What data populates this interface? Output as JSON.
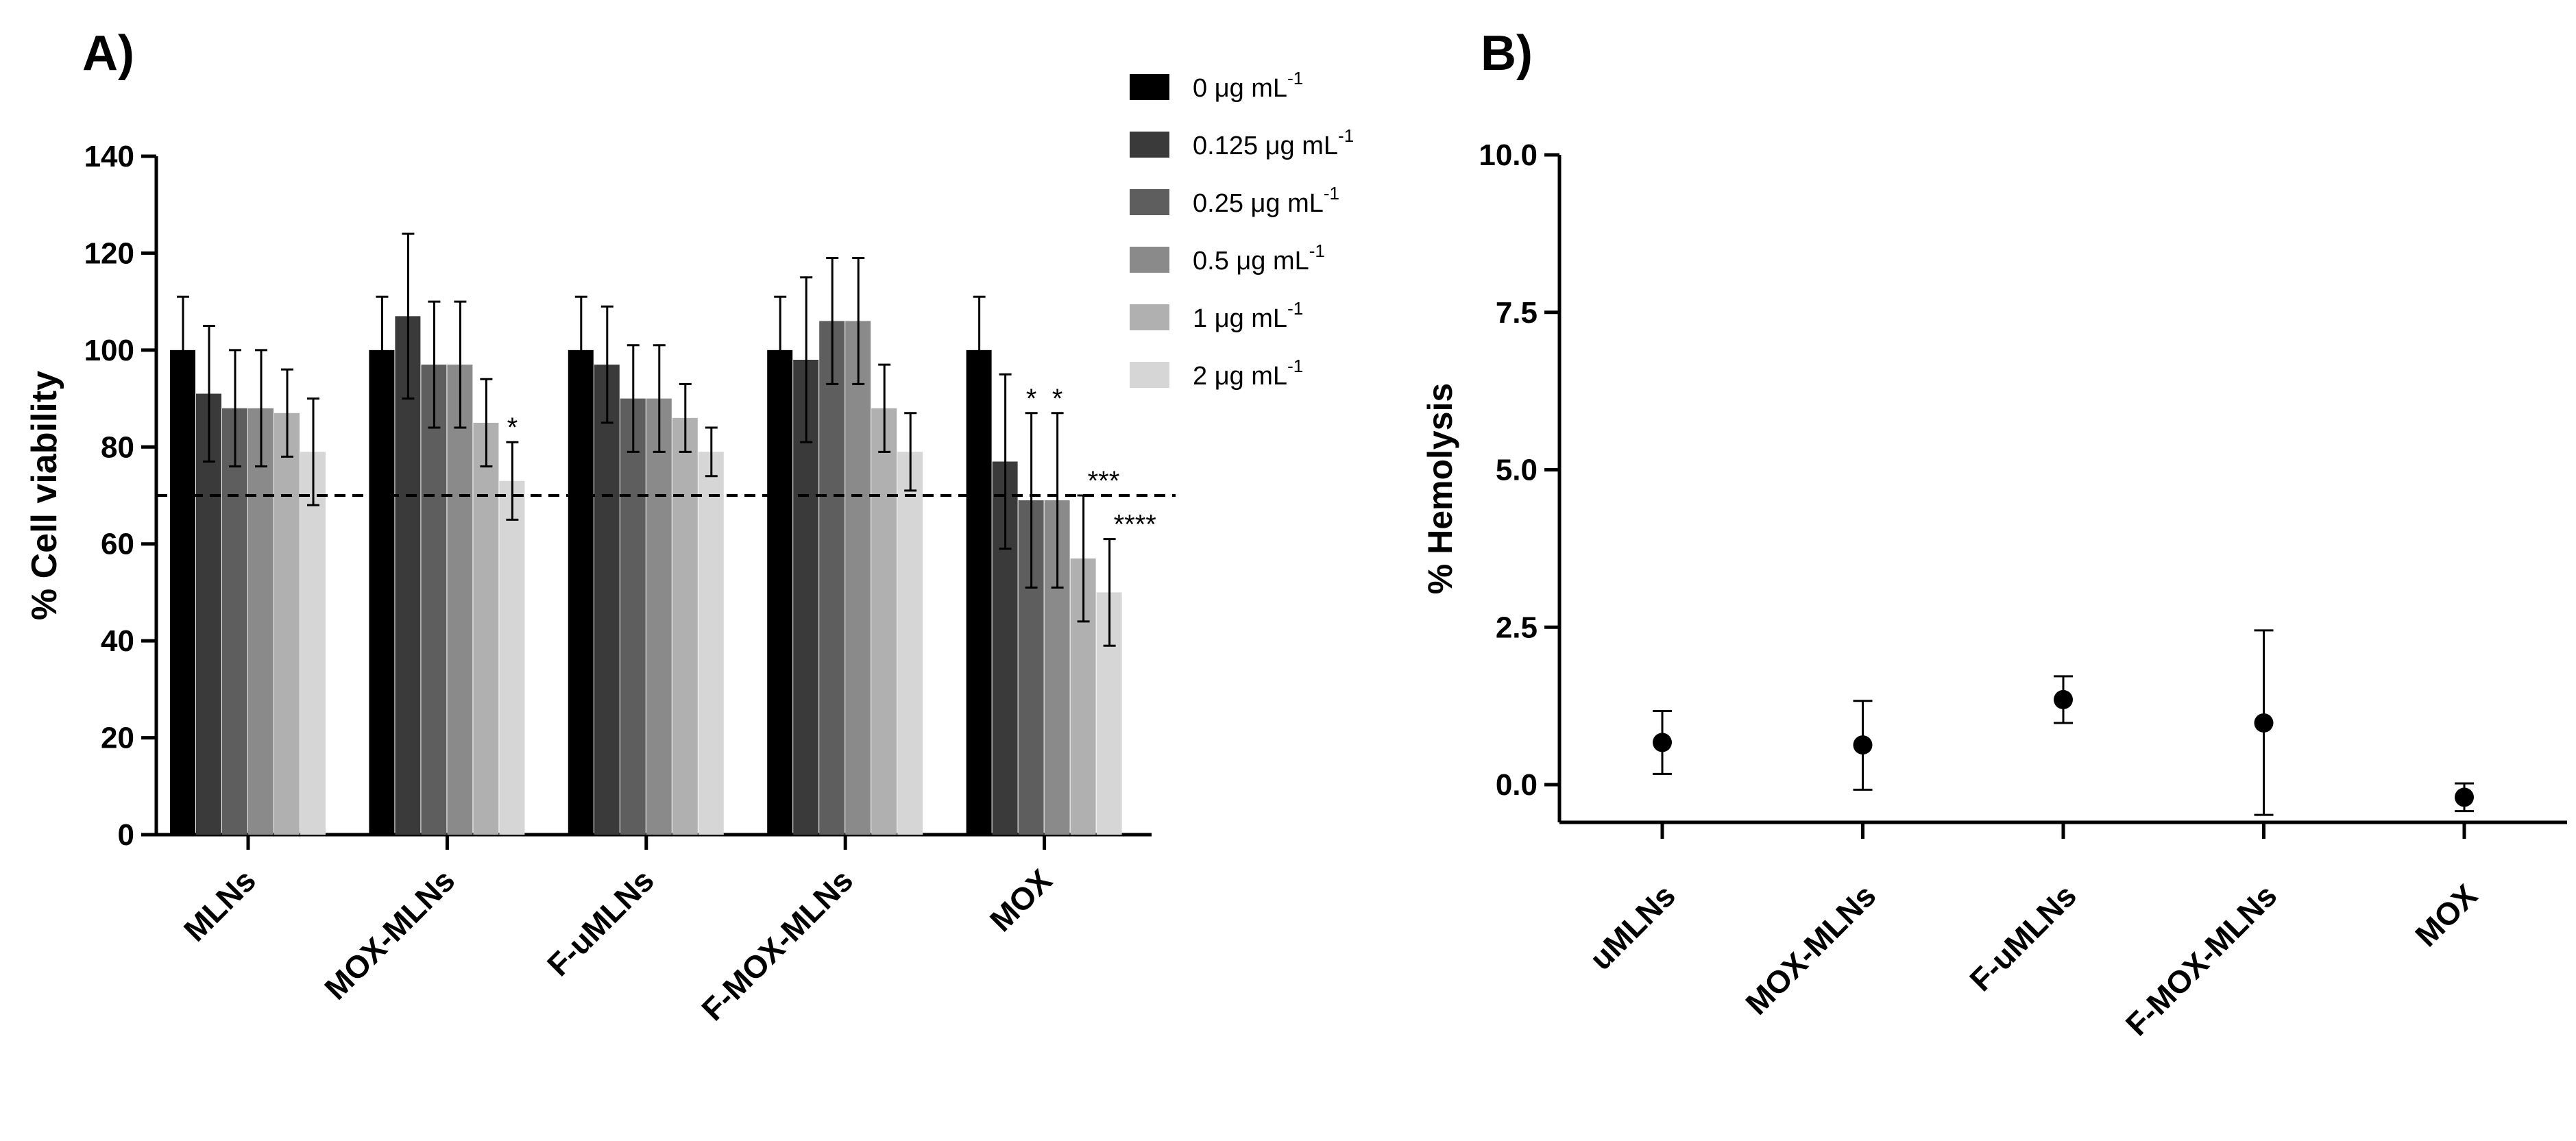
{
  "panels": {
    "a_label": "A)",
    "b_label": "B)"
  },
  "colors": {
    "series": [
      "#000000",
      "#3a3a3a",
      "#5e5e5e",
      "#8a8a8a",
      "#b0b0b0",
      "#d6d6d6"
    ],
    "axis": "#000000",
    "reference_line": "#000000",
    "marker": "#000000"
  },
  "chart_data": [
    {
      "type": "bar",
      "panel": "A)",
      "title": "",
      "xlabel": "",
      "ylabel": "% Cell viability",
      "ylim": [
        0,
        140
      ],
      "yticks": [
        "0",
        "20",
        "40",
        "60",
        "80",
        "100",
        "120",
        "140"
      ],
      "categories": [
        "MLNs",
        "MOX-MLNs",
        "F-uMLNs",
        "F-MOX-MLNs",
        "MOX"
      ],
      "reference_line": 70,
      "legend_position": "top-right",
      "series": [
        {
          "name": "0 μg mL",
          "unit_exponent": "-1",
          "values": [
            100,
            100,
            100,
            100,
            100
          ],
          "errors": [
            11,
            11,
            11,
            11,
            11
          ],
          "annotations": [
            "",
            "",
            "",
            "",
            ""
          ]
        },
        {
          "name": "0.125 μg mL",
          "unit_exponent": "-1",
          "values": [
            91,
            107,
            97,
            98,
            77
          ],
          "errors": [
            14,
            17,
            12,
            17,
            18
          ],
          "annotations": [
            "",
            "",
            "",
            "",
            ""
          ]
        },
        {
          "name": "0.25 μg mL",
          "unit_exponent": "-1",
          "values": [
            88,
            97,
            90,
            106,
            69
          ],
          "errors": [
            12,
            13,
            11,
            13,
            18
          ],
          "annotations": [
            "",
            "",
            "",
            "",
            "*"
          ]
        },
        {
          "name": "0.5 μg mL",
          "unit_exponent": "-1",
          "values": [
            88,
            97,
            90,
            106,
            69
          ],
          "errors": [
            12,
            13,
            11,
            13,
            18
          ],
          "annotations": [
            "",
            "",
            "",
            "",
            "*"
          ]
        },
        {
          "name": "1 μg mL",
          "unit_exponent": "-1",
          "values": [
            87,
            85,
            86,
            88,
            57
          ],
          "errors": [
            9,
            9,
            7,
            9,
            13
          ],
          "annotations": [
            "",
            "",
            "",
            "",
            "***"
          ]
        },
        {
          "name": "2 μg mL",
          "unit_exponent": "-1",
          "values": [
            79,
            73,
            79,
            79,
            50
          ],
          "errors": [
            11,
            8,
            5,
            8,
            11
          ],
          "annotations": [
            "",
            "*",
            "",
            "",
            "****"
          ]
        }
      ]
    },
    {
      "type": "scatter",
      "panel": "B)",
      "title": "",
      "xlabel": "",
      "ylabel": "% Hemolysis",
      "ylim": [
        -0.6,
        10.0
      ],
      "yticks": [
        "0.0",
        "2.5",
        "5.0",
        "7.5",
        "10.0"
      ],
      "categories": [
        "uMLNs",
        "MOX-MLNs",
        "F-uMLNs",
        "F-MOX-MLNs",
        "MOX"
      ],
      "values": [
        0.67,
        0.63,
        1.35,
        0.98,
        -0.2
      ],
      "error_low": [
        0.17,
        -0.08,
        0.98,
        -0.48,
        -0.42
      ],
      "error_high": [
        1.17,
        1.33,
        1.72,
        2.45,
        0.02
      ]
    }
  ]
}
